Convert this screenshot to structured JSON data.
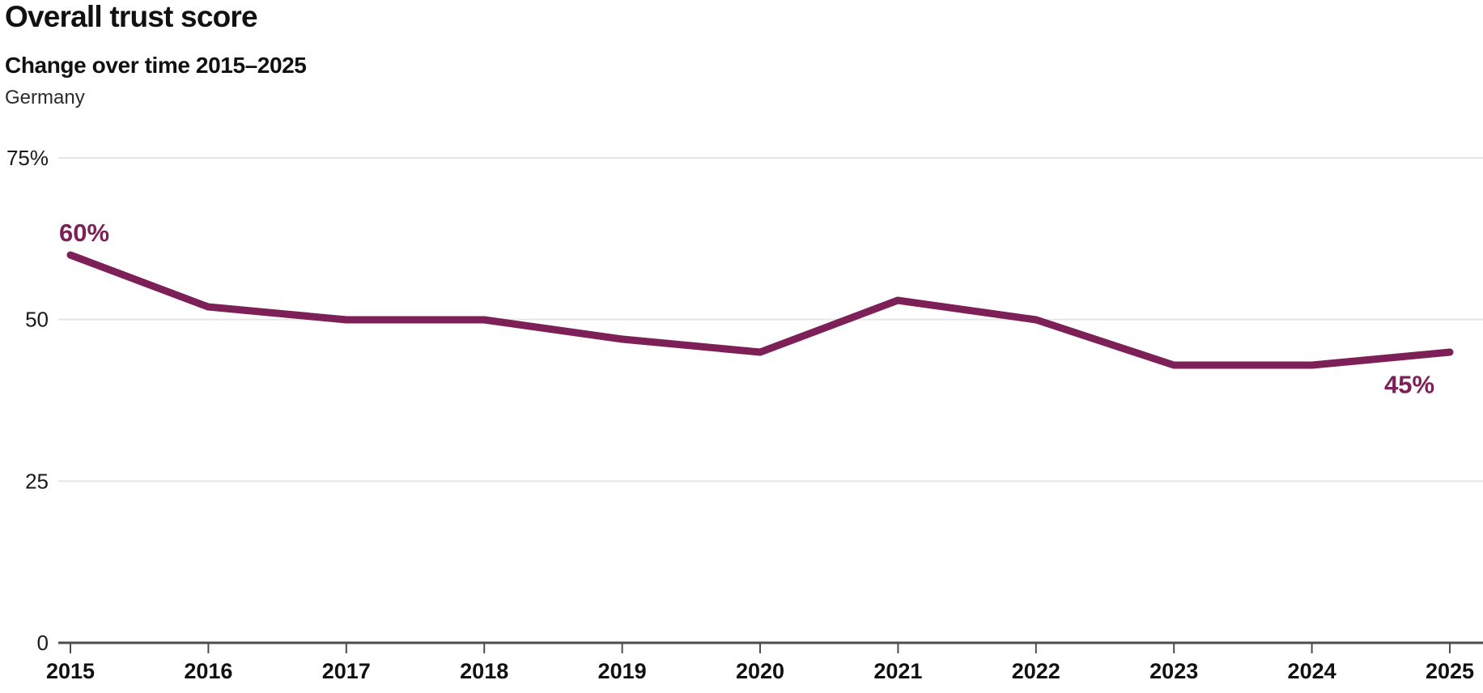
{
  "header": {
    "title": "Overall trust score",
    "subtitle": "Change over time 2015–2025",
    "region": "Germany"
  },
  "chart_data": {
    "type": "line",
    "title": "Overall trust score",
    "subtitle": "Change over time 2015–2025",
    "region_label": "Germany",
    "x": [
      2015,
      2016,
      2017,
      2018,
      2019,
      2020,
      2021,
      2022,
      2023,
      2024,
      2025
    ],
    "series": [
      {
        "name": "Overall trust score (Germany)",
        "values": [
          60,
          52,
          50,
          50,
          47,
          45,
          53,
          50,
          43,
          43,
          45
        ]
      }
    ],
    "unit": "%",
    "ylim": [
      0,
      75
    ],
    "yticks": [
      {
        "value": 75,
        "label": "75%"
      },
      {
        "value": 50,
        "label": "50"
      },
      {
        "value": 25,
        "label": "25"
      },
      {
        "value": 0,
        "label": "0"
      }
    ],
    "grid": "horizontal",
    "legend_position": "none",
    "annotations": [
      {
        "text": "60%",
        "year": 2015,
        "value": 60,
        "position": "above-start"
      },
      {
        "text": "45%",
        "year": 2025,
        "value": 45,
        "position": "below-end"
      }
    ],
    "colors": {
      "line": "#7d2057",
      "annotation": "#7d2057",
      "grid": "#e6e6e6",
      "axis": "#4d4d4d",
      "text": "#111111"
    }
  }
}
